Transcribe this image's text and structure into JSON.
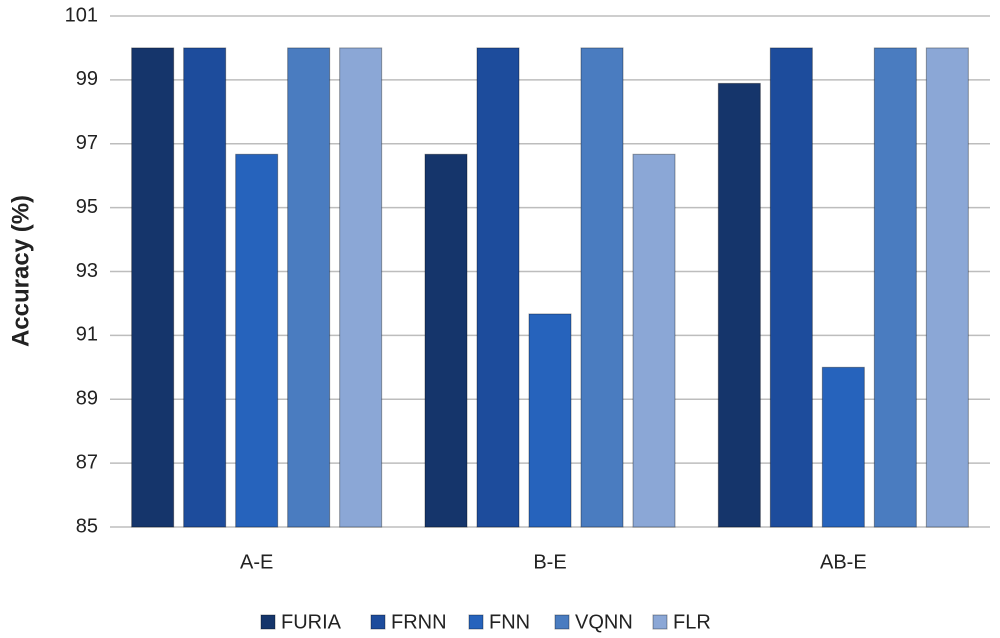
{
  "chart_data": {
    "type": "bar",
    "y_label": "Accuracy (%)",
    "categories": [
      "A-E",
      "B-E",
      "AB-E"
    ],
    "series": [
      {
        "name": "FURIA",
        "color": "#15356b",
        "values": [
          100,
          96.67,
          98.89
        ]
      },
      {
        "name": "FRNN",
        "color": "#1d4c9c",
        "values": [
          100,
          100,
          100
        ]
      },
      {
        "name": "FNN",
        "color": "#2663bc",
        "values": [
          96.67,
          91.67,
          90
        ]
      },
      {
        "name": "VQNN",
        "color": "#4a7cc0",
        "values": [
          100,
          100,
          100
        ]
      },
      {
        "name": "FLR",
        "color": "#8ba7d6",
        "values": [
          100,
          96.67,
          100
        ]
      }
    ],
    "ylim": [
      85,
      101
    ],
    "yticks": [
      85,
      87,
      89,
      91,
      93,
      95,
      97,
      99,
      101
    ],
    "grid": true,
    "legend": "bottom"
  }
}
